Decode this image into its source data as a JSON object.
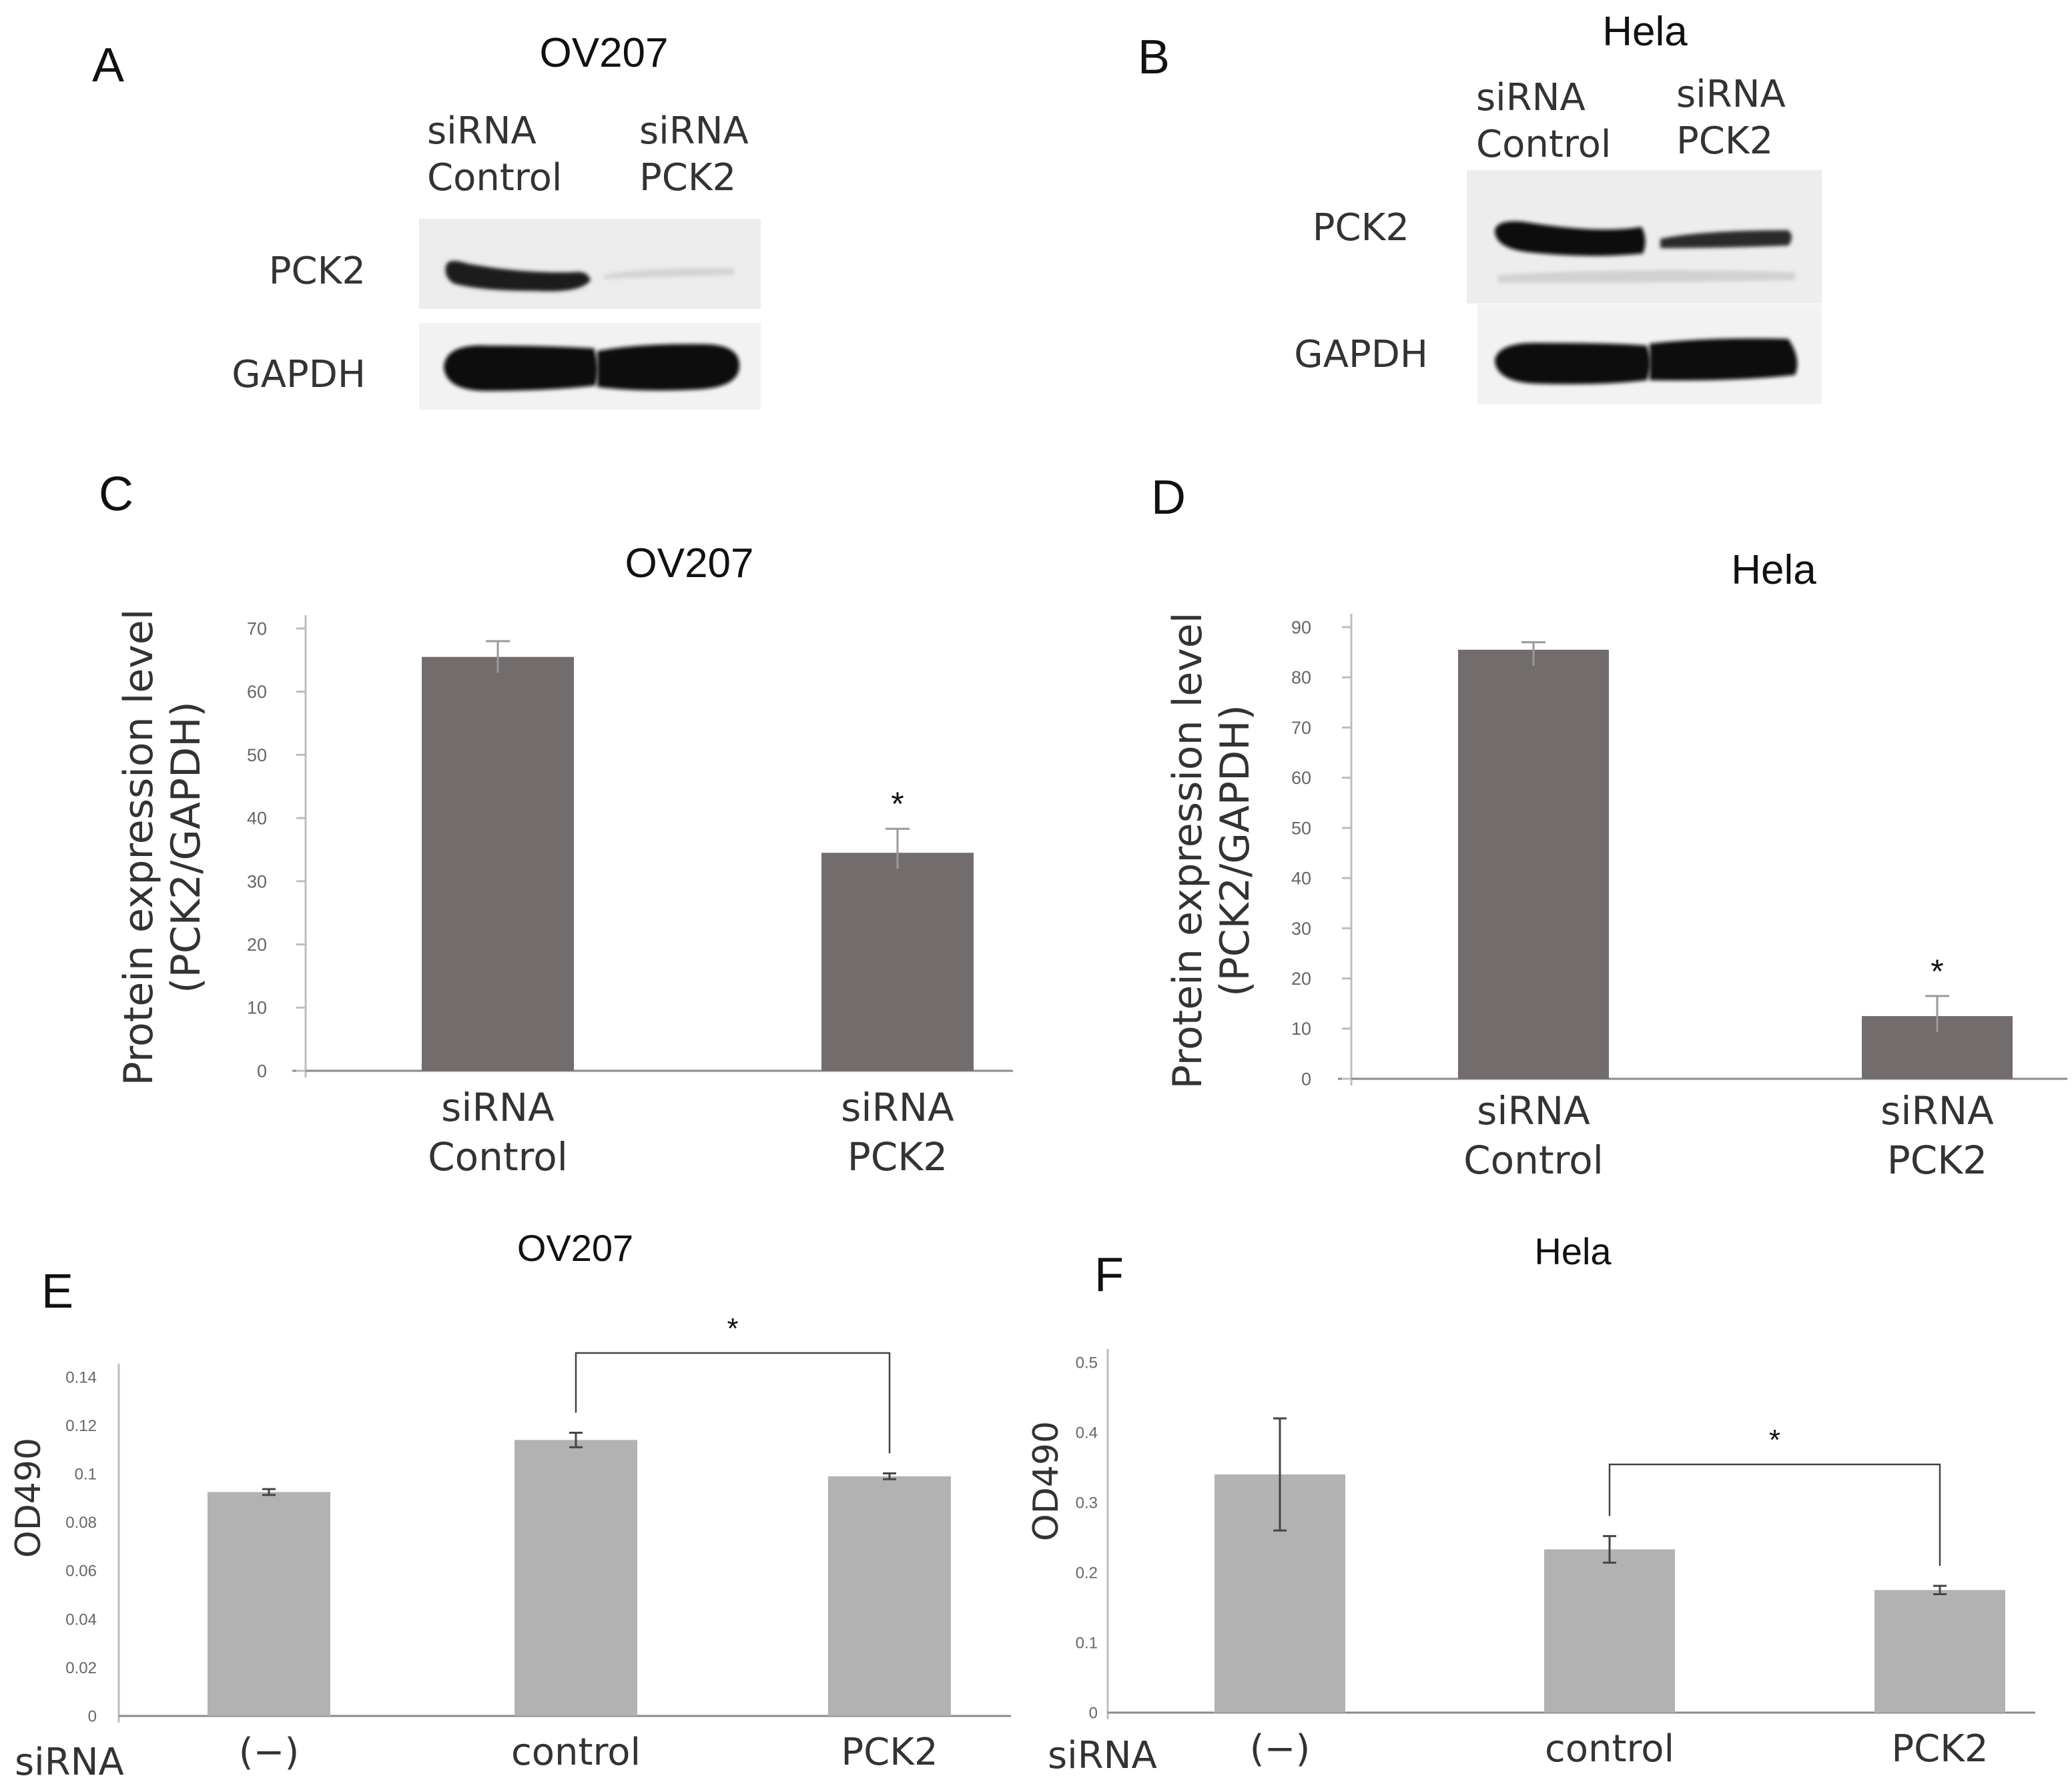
{
  "figure": {
    "panels": {
      "A": {
        "letter": "A",
        "title": "OV207",
        "lanes": [
          "siRNA\nControl",
          "siRNA\nPCK2"
        ],
        "rows": [
          "PCK2",
          "GAPDH"
        ]
      },
      "B": {
        "letter": "B",
        "title": "Hela",
        "lanes": [
          "siRNA\nControl",
          "siRNA\nPCK2"
        ],
        "rows": [
          "PCK2",
          "GAPDH"
        ]
      },
      "C": {
        "letter": "C"
      },
      "D": {
        "letter": "D"
      },
      "E": {
        "letter": "E"
      },
      "F": {
        "letter": "F"
      }
    }
  },
  "chart_data": [
    {
      "id": "C",
      "type": "bar",
      "title": "OV207",
      "ylabel": "Protein expression level\n(PCK2/GAPDH)",
      "categories": [
        "siRNA\nControl",
        "siRNA\nPCK2"
      ],
      "values": [
        65.5,
        34.5
      ],
      "errors": [
        2.5,
        3.8
      ],
      "significance": [
        "",
        "*"
      ],
      "ylim": [
        0,
        70
      ],
      "yticks": [
        0,
        10,
        20,
        30,
        40,
        50,
        60,
        70
      ],
      "color": "#736c6c"
    },
    {
      "id": "D",
      "type": "bar",
      "title": "Hela",
      "ylabel": "Protein expression level\n(PCK2/GAPDH)",
      "categories": [
        "siRNA\nControl",
        "siRNA\nPCK2"
      ],
      "values": [
        85.5,
        12.5
      ],
      "errors": [
        1.5,
        4
      ],
      "significance": [
        "",
        "*"
      ],
      "ylim": [
        0,
        90
      ],
      "yticks": [
        0,
        10,
        20,
        30,
        40,
        50,
        60,
        70,
        80,
        90
      ],
      "color": "#736c6c"
    },
    {
      "id": "E",
      "type": "bar",
      "title": "OV207",
      "ylabel": "OD490",
      "xlabel": "siRNA",
      "categories": [
        "(−)",
        "control",
        "PCK2"
      ],
      "values": [
        0.0925,
        0.114,
        0.099
      ],
      "errors": [
        0.0012,
        0.003,
        0.0012
      ],
      "ylim": [
        0,
        0.14
      ],
      "yticks": [
        0,
        0.02,
        0.04,
        0.06,
        0.08,
        0.1,
        0.12,
        0.14
      ],
      "ytick_labels": [
        "0",
        "0.02",
        "0.04",
        "0.06",
        "0.08",
        "0.1",
        "0.12",
        "0.14"
      ],
      "comparison": {
        "from": 1,
        "to": 2,
        "label": "*"
      },
      "color": "#b2b2b2"
    },
    {
      "id": "F",
      "type": "bar",
      "title": "Hela",
      "ylabel": "OD490",
      "xlabel": "siRNA",
      "categories": [
        "(−)",
        "control",
        "PCK2"
      ],
      "values": [
        0.34,
        0.233,
        0.175
      ],
      "errors": [
        0.08,
        0.019,
        0.006
      ],
      "ylim": [
        0,
        0.5
      ],
      "yticks": [
        0,
        0.1,
        0.2,
        0.3,
        0.4,
        0.5
      ],
      "ytick_labels": [
        "0",
        "0.1",
        "0.2",
        "0.3",
        "0.4",
        "0.5"
      ],
      "comparison": {
        "from": 1,
        "to": 2,
        "label": "*"
      },
      "color": "#b2b2b2"
    }
  ]
}
